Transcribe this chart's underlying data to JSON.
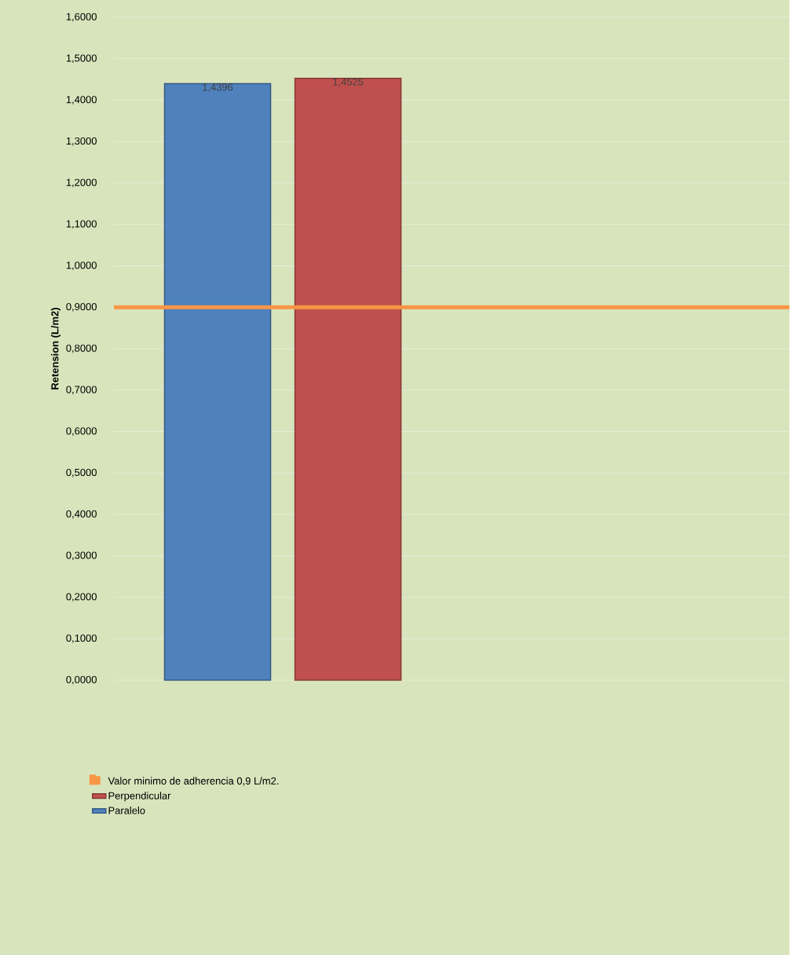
{
  "chart_data": {
    "type": "bar",
    "ylabel": "Retension (L/m2)",
    "categories": [
      null,
      null
    ],
    "series": [
      {
        "name": "Paralelo",
        "color": "#4f81bd",
        "values": [
          1.4396,
          null
        ],
        "value_labels": [
          "1,4396",
          null
        ]
      },
      {
        "name": "Perpendicular",
        "color": "#c0504d",
        "values": [
          1.4525,
          null
        ],
        "value_labels": [
          "1,4525",
          null
        ]
      }
    ],
    "ylim": [
      0,
      1.6
    ],
    "yticks": [
      {
        "value": 0,
        "label": "0,0000"
      },
      {
        "value": 0.1,
        "label": "0,1000"
      },
      {
        "value": 0.2,
        "label": "0,2000"
      },
      {
        "value": 0.3,
        "label": "0,3000"
      },
      {
        "value": 0.4,
        "label": "0,4000"
      },
      {
        "value": 0.5,
        "label": "0,5000"
      },
      {
        "value": 0.6,
        "label": "0,6000"
      },
      {
        "value": 0.7,
        "label": "0,7000"
      },
      {
        "value": 0.8,
        "label": "0,8000"
      },
      {
        "value": 0.9,
        "label": "0,9000"
      },
      {
        "value": 1.0,
        "label": "1,0000"
      },
      {
        "value": 1.1,
        "label": "1,1000"
      },
      {
        "value": 1.2,
        "label": "1,2000"
      },
      {
        "value": 1.3,
        "label": "1,3000"
      },
      {
        "value": 1.4,
        "label": "1,4000"
      },
      {
        "value": 1.5,
        "label": "1,5000"
      },
      {
        "value": 1.6,
        "label": "1,6000"
      }
    ],
    "ref_lines": [
      {
        "axis": "y",
        "value": 0.9,
        "label": "Valor minimo de adherencia 0,9 L/m2.",
        "color": "#f79646"
      }
    ],
    "grid": "y",
    "legend": "bottom"
  }
}
